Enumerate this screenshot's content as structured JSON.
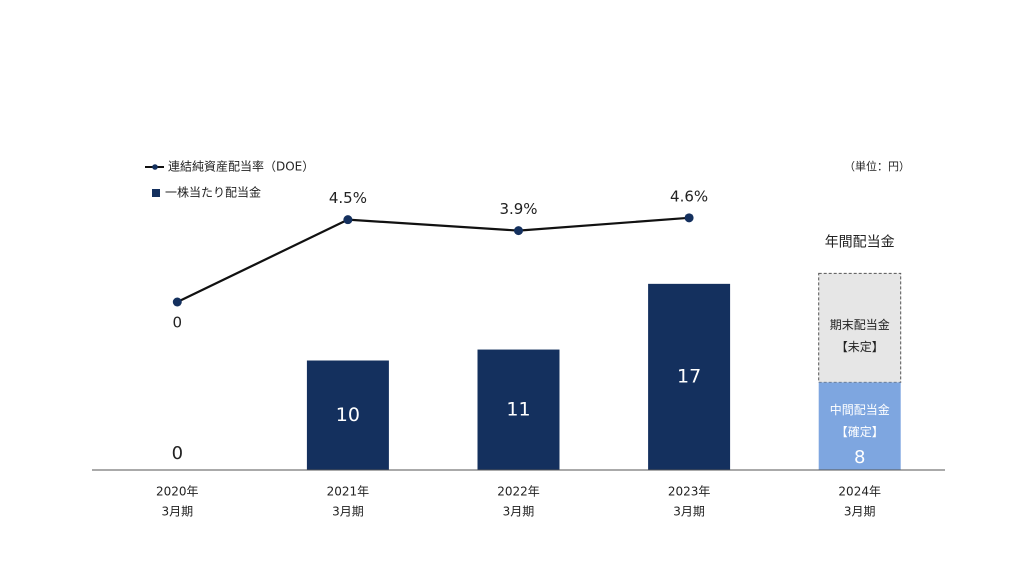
{
  "chart_data": {
    "type": "bar_line",
    "unit_label": "（単位：円）",
    "categories": [
      [
        "2020年",
        "3月期"
      ],
      [
        "2021年",
        "3月期"
      ],
      [
        "2022年",
        "3月期"
      ],
      [
        "2023年",
        "3月期"
      ],
      [
        "2024年",
        "3月期"
      ]
    ],
    "series": [
      {
        "name": "一株当たり配当金",
        "type": "bar",
        "color": "#14305e",
        "colors": [
          "#14305e",
          "#14305e",
          "#14305e",
          "#14305e",
          "#7ea6e0"
        ],
        "values": [
          0,
          10,
          11,
          17,
          8
        ]
      },
      {
        "name": "連結純資産配当率（DOE）",
        "type": "line",
        "axis": "y2",
        "color": "#14305e",
        "values": [
          0,
          4.5,
          3.9,
          4.6,
          null
        ],
        "value_labels": [
          "0",
          "4.5%",
          "3.9%",
          "4.6%",
          null
        ]
      }
    ],
    "ylim": [
      0,
      20
    ],
    "y2lim": [
      0,
      5
    ],
    "annotations": {
      "total_label": "年間配当金",
      "final_label": [
        "期末配当金",
        "【未定】"
      ],
      "interim_label": [
        "中間配当金",
        "【確定】"
      ]
    }
  }
}
